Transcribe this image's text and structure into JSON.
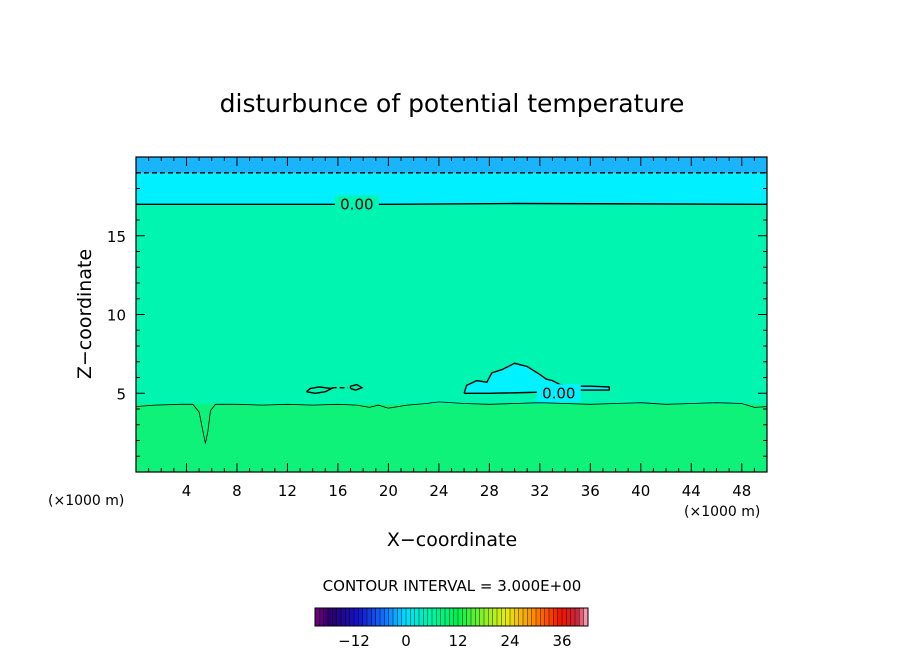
{
  "chart_data": {
    "type": "heatmap",
    "title": "disturbunce of potential temperature",
    "xlabel": "X−coordinate",
    "ylabel": "Z−coordinate",
    "x_unit": "(×1000 m)",
    "xlim": [
      0,
      50
    ],
    "ylim": [
      0,
      20
    ],
    "x_ticks": [
      4,
      8,
      12,
      16,
      20,
      24,
      28,
      32,
      36,
      40,
      44,
      48
    ],
    "x_tick_labels": [
      "4",
      "8",
      "12",
      "16",
      "20",
      "24",
      "28",
      "32",
      "36",
      "40",
      "44",
      "48"
    ],
    "y_ticks": [
      5,
      10,
      15
    ],
    "y_tick_labels": [
      "5",
      "10",
      "15"
    ],
    "contour_interval_text": "CONTOUR INTERVAL = 3.000E+00",
    "colorbar": {
      "range": [
        -21,
        42
      ],
      "ticks": [
        -12,
        0,
        12,
        24,
        36
      ],
      "tick_labels": [
        "−12",
        "0",
        "12",
        "24",
        "36"
      ]
    },
    "field_layers": [
      {
        "z_from": 19.0,
        "z_to": 20.0,
        "value": -4.5,
        "color": "#19b4fa"
      },
      {
        "z_from": 17.0,
        "z_to": 19.0,
        "value": -1.5,
        "color": "#00f0ff"
      },
      {
        "z_from": 4.3,
        "z_to": 17.0,
        "value": 1.5,
        "color": "#00f5b0"
      },
      {
        "z_from": 0.0,
        "z_to": 4.3,
        "value": 4.5,
        "color": "#0ff27a"
      }
    ],
    "contours": [
      {
        "level": 0.0,
        "label": "0.00",
        "style": "solid",
        "label_at": {
          "x": 17.5,
          "z": 17.0
        },
        "points": [
          [
            0,
            17.0
          ],
          [
            20,
            17.0
          ],
          [
            30,
            17.05
          ],
          [
            50,
            17.0
          ]
        ]
      },
      {
        "level": 0.0,
        "label": "0.00",
        "style": "solid",
        "label_at": {
          "x": 33.5,
          "z": 5.0
        },
        "points": [
          [
            26.0,
            5.0
          ],
          [
            26.2,
            5.5
          ],
          [
            27.0,
            5.8
          ],
          [
            27.8,
            5.7
          ],
          [
            28.2,
            6.3
          ],
          [
            29.0,
            6.5
          ],
          [
            30.0,
            6.9
          ],
          [
            31.0,
            6.7
          ],
          [
            32.0,
            6.2
          ],
          [
            32.5,
            5.9
          ],
          [
            33.0,
            5.8
          ],
          [
            33.6,
            5.55
          ],
          [
            34.5,
            5.45
          ],
          [
            36.0,
            5.45
          ],
          [
            37.5,
            5.4
          ],
          [
            37.5,
            5.2
          ],
          [
            36.0,
            5.2
          ],
          [
            34.5,
            5.2
          ],
          [
            33.0,
            5.1
          ],
          [
            31.0,
            5.05
          ],
          [
            28.0,
            5.0
          ],
          [
            26.0,
            5.0
          ]
        ]
      },
      {
        "level": 0.0,
        "label": "",
        "style": "solid",
        "points": [
          [
            13.5,
            5.1
          ],
          [
            14.2,
            5.0
          ],
          [
            15.0,
            5.1
          ],
          [
            15.5,
            5.3
          ],
          [
            14.5,
            5.4
          ],
          [
            13.8,
            5.3
          ],
          [
            13.5,
            5.1
          ]
        ]
      },
      {
        "level": 0.0,
        "label": "",
        "style": "solid",
        "points": [
          [
            17.0,
            5.3
          ],
          [
            17.4,
            5.2
          ],
          [
            17.9,
            5.35
          ],
          [
            17.5,
            5.55
          ],
          [
            17.0,
            5.45
          ],
          [
            17.0,
            5.3
          ]
        ]
      },
      {
        "level": 0.0,
        "label": "",
        "style": "dashed",
        "points": [
          [
            15.5,
            5.35
          ],
          [
            16.8,
            5.35
          ]
        ]
      },
      {
        "level": -3.0,
        "label": "",
        "style": "dashed",
        "points": [
          [
            0,
            19.0
          ],
          [
            50,
            19.0
          ]
        ]
      },
      {
        "level": 3.0,
        "label": "",
        "style": "thin",
        "points": [
          [
            0,
            4.15
          ],
          [
            1.5,
            4.25
          ],
          [
            3.5,
            4.3
          ],
          [
            4.5,
            4.3
          ],
          [
            5.0,
            3.8
          ],
          [
            5.3,
            2.6
          ],
          [
            5.5,
            1.8
          ],
          [
            5.7,
            2.6
          ],
          [
            5.9,
            3.9
          ],
          [
            6.3,
            4.3
          ],
          [
            8,
            4.3
          ],
          [
            10,
            4.25
          ],
          [
            12,
            4.3
          ],
          [
            14,
            4.25
          ],
          [
            16,
            4.3
          ],
          [
            17.5,
            4.25
          ],
          [
            18.5,
            4.1
          ],
          [
            19.2,
            4.25
          ],
          [
            20.0,
            4.05
          ],
          [
            21.5,
            4.25
          ],
          [
            23,
            4.35
          ],
          [
            24,
            4.45
          ],
          [
            26,
            4.35
          ],
          [
            28,
            4.3
          ],
          [
            30,
            4.35
          ],
          [
            32,
            4.4
          ],
          [
            34,
            4.35
          ],
          [
            36,
            4.3
          ],
          [
            38,
            4.35
          ],
          [
            40,
            4.4
          ],
          [
            42,
            4.3
          ],
          [
            44,
            4.35
          ],
          [
            46,
            4.4
          ],
          [
            48,
            4.35
          ],
          [
            49,
            4.1
          ],
          [
            50,
            4.15
          ]
        ]
      }
    ]
  }
}
